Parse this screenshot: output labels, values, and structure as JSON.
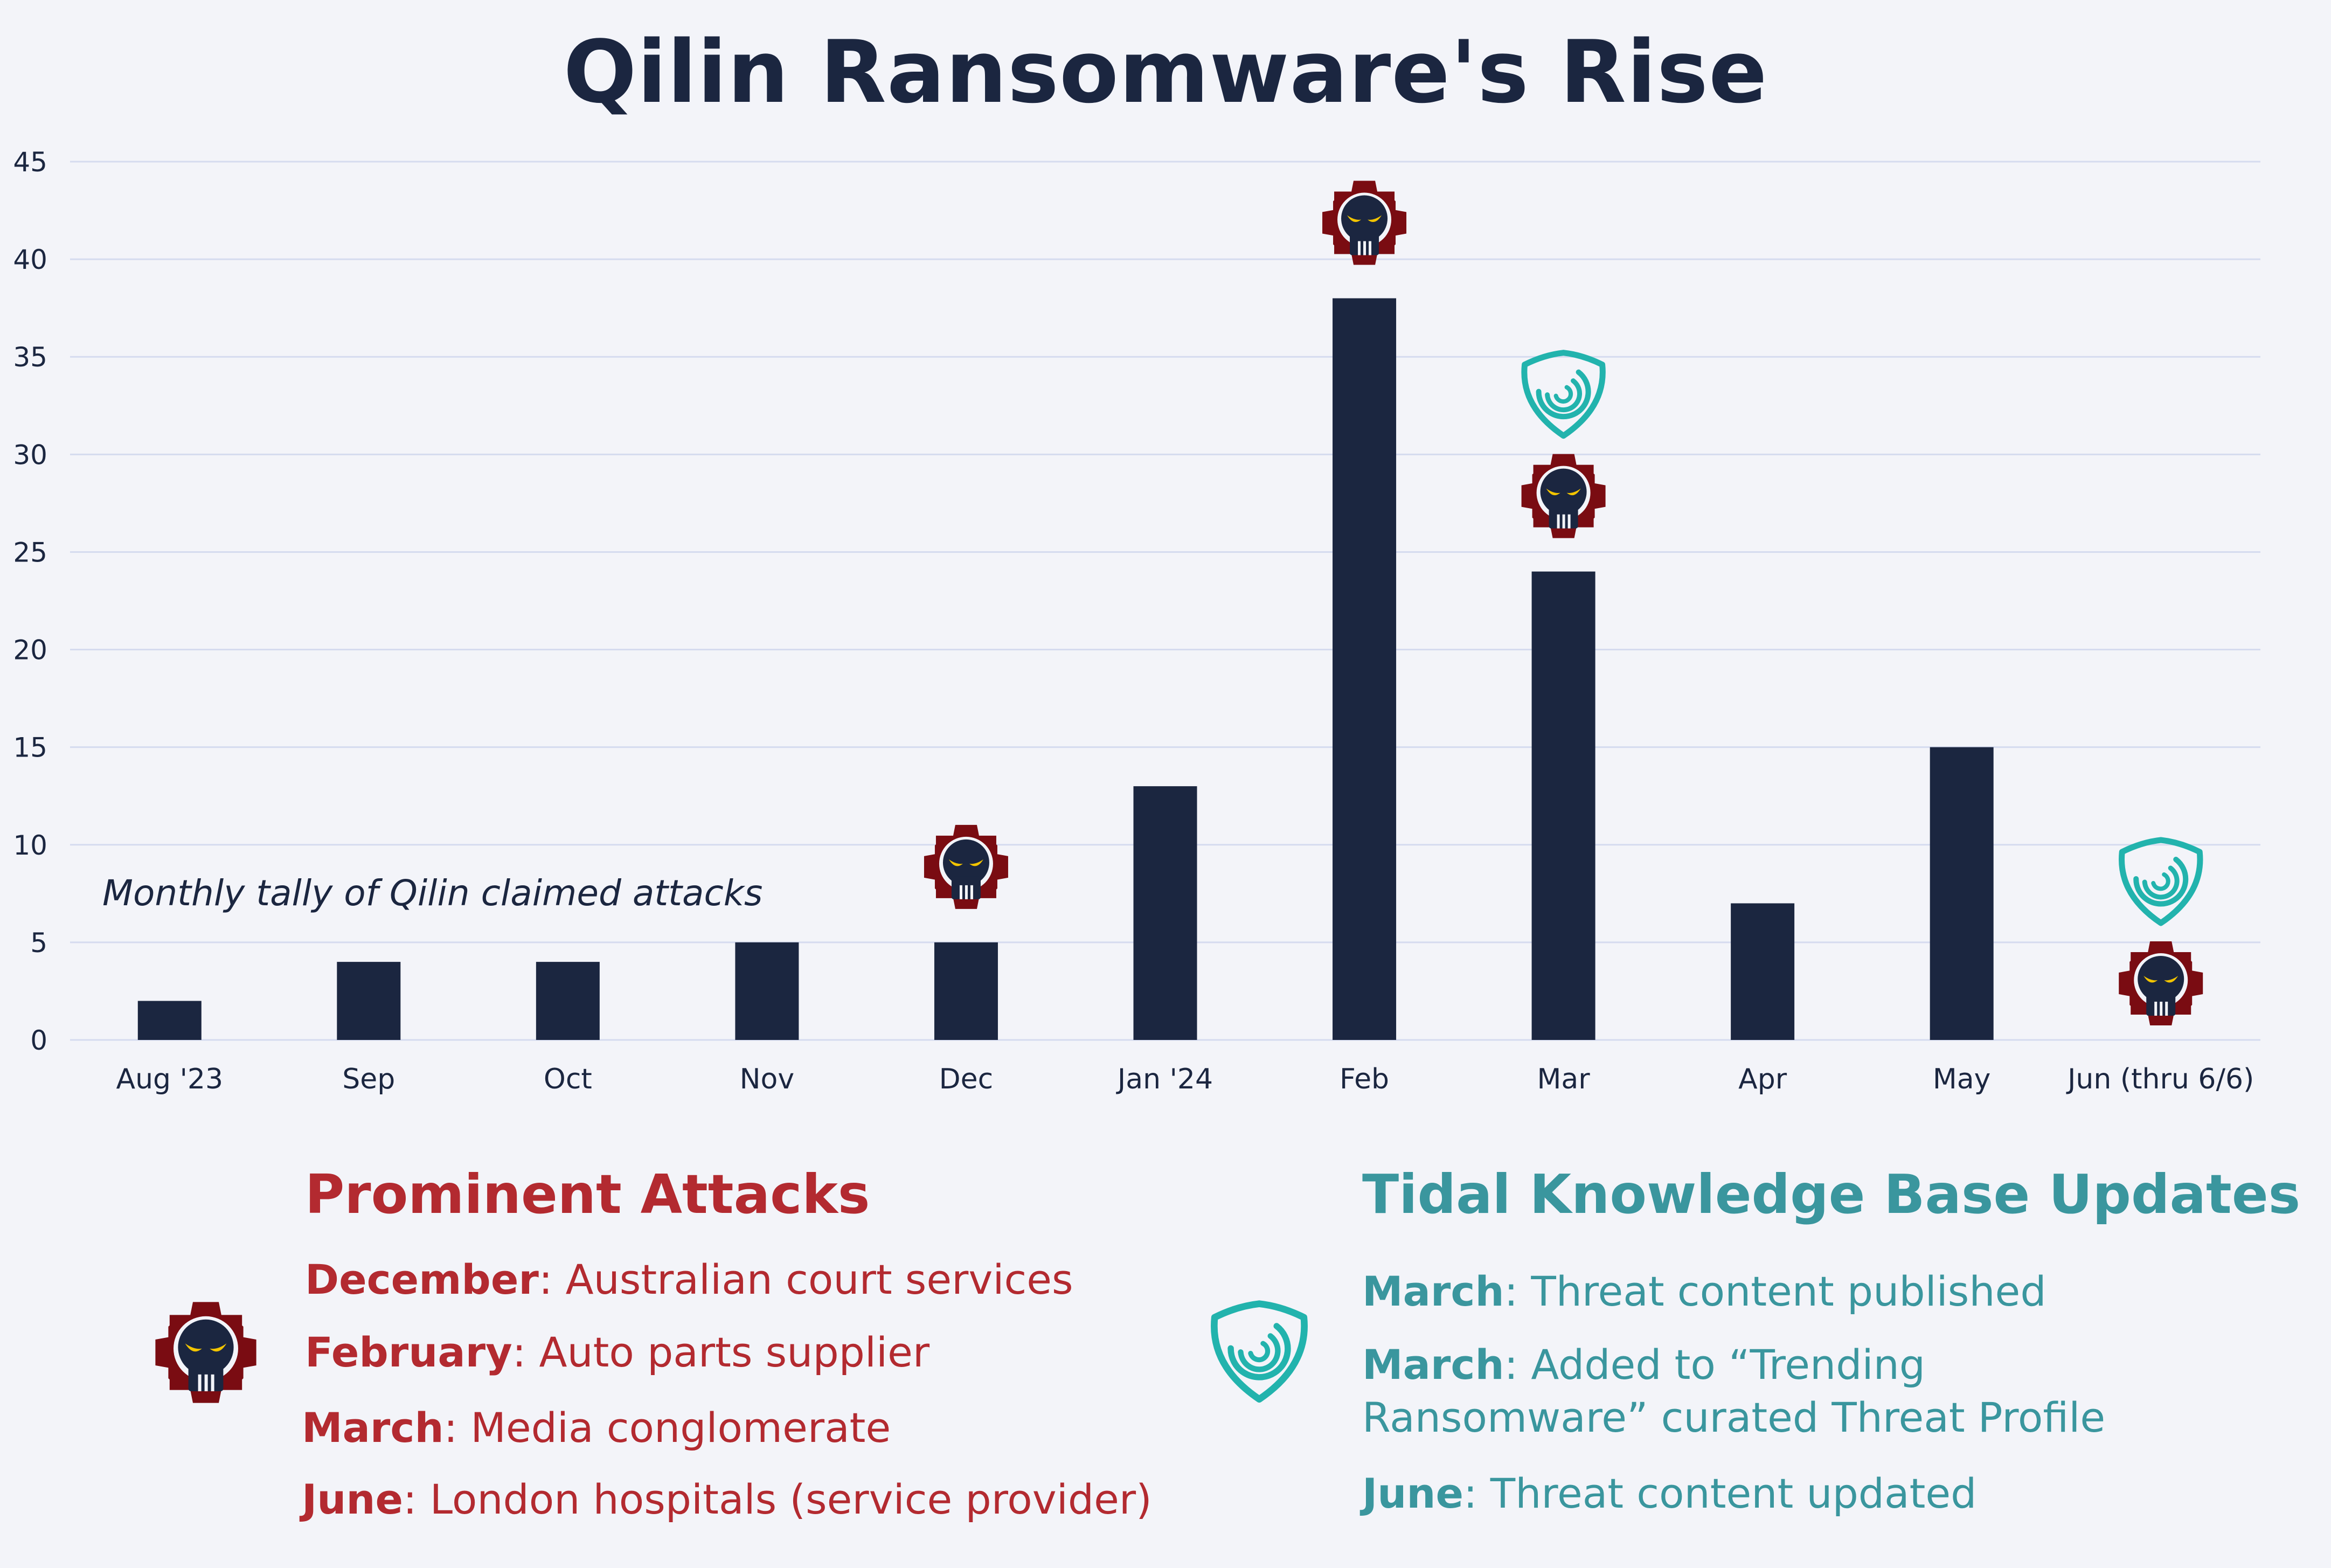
{
  "chart_data": {
    "type": "bar",
    "title": "Qilin Ransomware's Rise",
    "annotation": "Monthly tally of Qilin claimed attacks",
    "categories": [
      "Aug '23",
      "Sep",
      "Oct",
      "Nov",
      "Dec",
      "Jan '24",
      "Feb",
      "Mar",
      "Apr",
      "May",
      "Jun (thru 6/6)"
    ],
    "values": [
      2,
      4,
      4,
      5,
      5,
      13,
      38,
      24,
      7,
      15,
      0
    ],
    "ylim": [
      0,
      45
    ],
    "yticks": [
      0,
      5,
      10,
      15,
      20,
      25,
      30,
      35,
      40,
      45
    ],
    "grid": true,
    "bar_color": "#1b2640",
    "grid_color": "#d5dbef",
    "markers": [
      {
        "category": "Dec",
        "icons": [
          "skull-gear-icon"
        ]
      },
      {
        "category": "Feb",
        "icons": [
          "skull-gear-icon"
        ]
      },
      {
        "category": "Mar",
        "icons": [
          "skull-gear-icon",
          "tidal-shield-icon"
        ]
      },
      {
        "category": "Jun (thru 6/6)",
        "icons": [
          "skull-gear-icon",
          "tidal-shield-icon"
        ]
      }
    ]
  },
  "colors": {
    "title": "#1b2640",
    "attacks": "#b32a30",
    "tidal": "#3a969e",
    "gear": "#7a0c12",
    "shield": "#22b3ad"
  },
  "legend": {
    "attacks": {
      "heading": "Prominent Attacks",
      "icon": "skull-gear-icon",
      "items": [
        {
          "month": "December",
          "text": ": Australian court services"
        },
        {
          "month": "February",
          "text": ": Auto parts supplier"
        },
        {
          "month": "March",
          "text": ": Media conglomerate"
        },
        {
          "month": "June",
          "text": ": London hospitals (service provider)"
        }
      ]
    },
    "tidal": {
      "heading": "Tidal Knowledge Base Updates",
      "icon": "tidal-shield-icon",
      "items": [
        {
          "month": "March",
          "lines": [
            ": Threat content published"
          ]
        },
        {
          "month": "March",
          "lines": [
            ": Added to “Trending",
            "Ransomware” curated Threat Profile"
          ]
        },
        {
          "month": "June",
          "lines": [
            ": Threat content updated"
          ]
        }
      ]
    }
  }
}
